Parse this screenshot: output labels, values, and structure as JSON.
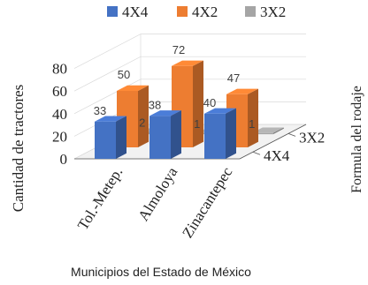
{
  "chart_data": {
    "type": "bar",
    "title": "",
    "xlabel": "Municipios del Estado de México",
    "ylabel": "Cantidad de tractores",
    "zlabel": "Formula del rodaje",
    "categories": [
      "Tol.-Metep.",
      "Almoloya",
      "Zinacantepec"
    ],
    "y_ticks": [
      "0",
      "20",
      "40",
      "60",
      "80"
    ],
    "ylim": [
      0,
      80
    ],
    "depth_ticks": [
      "4X4",
      "3X2"
    ],
    "legend_position": "top",
    "series": [
      {
        "name": "4X4",
        "values": [
          33,
          38,
          40
        ],
        "labels": [
          "33",
          "38",
          "40"
        ],
        "color": "#4472C4"
      },
      {
        "name": "4X2",
        "values": [
          50,
          72,
          47
        ],
        "labels": [
          "50",
          "72",
          "47"
        ],
        "color": "#ED7D31"
      },
      {
        "name": "3X2",
        "values": [
          2,
          1,
          1
        ],
        "labels": [
          "2",
          "1",
          "1"
        ],
        "color": "#A5A5A5"
      }
    ]
  }
}
